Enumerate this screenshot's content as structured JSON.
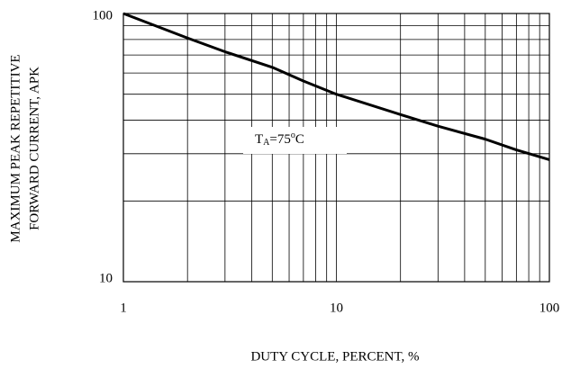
{
  "chart_data": {
    "type": "line",
    "log_x": true,
    "log_y": true,
    "grid": true,
    "x_label": "DUTY CYCLE, PERCENT, %",
    "y_label": [
      "MAXIMUM PEAK REPETITIVE",
      "FORWARD CURRENT, APK"
    ],
    "annotation": {
      "base": "T",
      "subscript": "A",
      "middle": "=75",
      "superscript": "o",
      "end": "C"
    },
    "x": [
      1,
      2,
      3,
      5,
      7,
      10,
      20,
      30,
      50,
      70,
      100
    ],
    "series": [
      {
        "name": "TA=75C",
        "color": "#000000",
        "values": [
          100,
          81,
          72,
          63,
          56,
          50,
          42,
          38,
          34,
          31,
          28.5
        ]
      }
    ],
    "xlim": [
      1,
      100
    ],
    "ylim": [
      10,
      100
    ],
    "xticks": [
      1,
      10,
      100
    ],
    "yticks": [
      10,
      100
    ],
    "x_minor_ticks": [
      2,
      3,
      4,
      5,
      6,
      7,
      8,
      9,
      20,
      30,
      40,
      50,
      60,
      70,
      80,
      90
    ],
    "y_minor_ticks": [
      20,
      30,
      40,
      50,
      60,
      70,
      80,
      90
    ]
  }
}
